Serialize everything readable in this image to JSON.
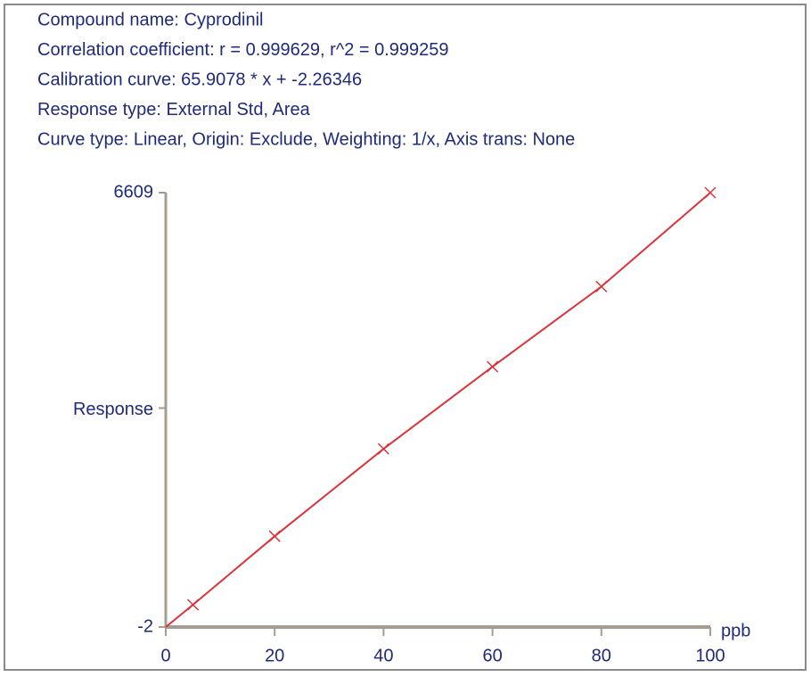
{
  "header": {
    "lines": [
      "Compound name: Cyprodinil",
      "Correlation coefficient: r = 0.999629, r^2 = 0.999259",
      "Calibration curve: 65.9078 * x + -2.26346",
      "Response type: External Std, Area",
      "Curve type: Linear, Origin: Exclude, Weighting: 1/x, Axis trans: None"
    ]
  },
  "chart_data": {
    "type": "scatter",
    "x": [
      5,
      20,
      40,
      60,
      80,
      100
    ],
    "series": [
      {
        "color": "#d9343c",
        "values": [
          337,
          1380,
          2710,
          3960,
          5180,
          6609
        ]
      }
    ],
    "line": true,
    "xlim": [
      0,
      100
    ],
    "xticks": [
      0,
      20,
      40,
      60,
      80,
      100
    ],
    "ylim": [
      -2,
      6609
    ],
    "yticks": [
      -2,
      6609
    ],
    "xlabel": "ppb",
    "ylabel": "Response"
  }
}
